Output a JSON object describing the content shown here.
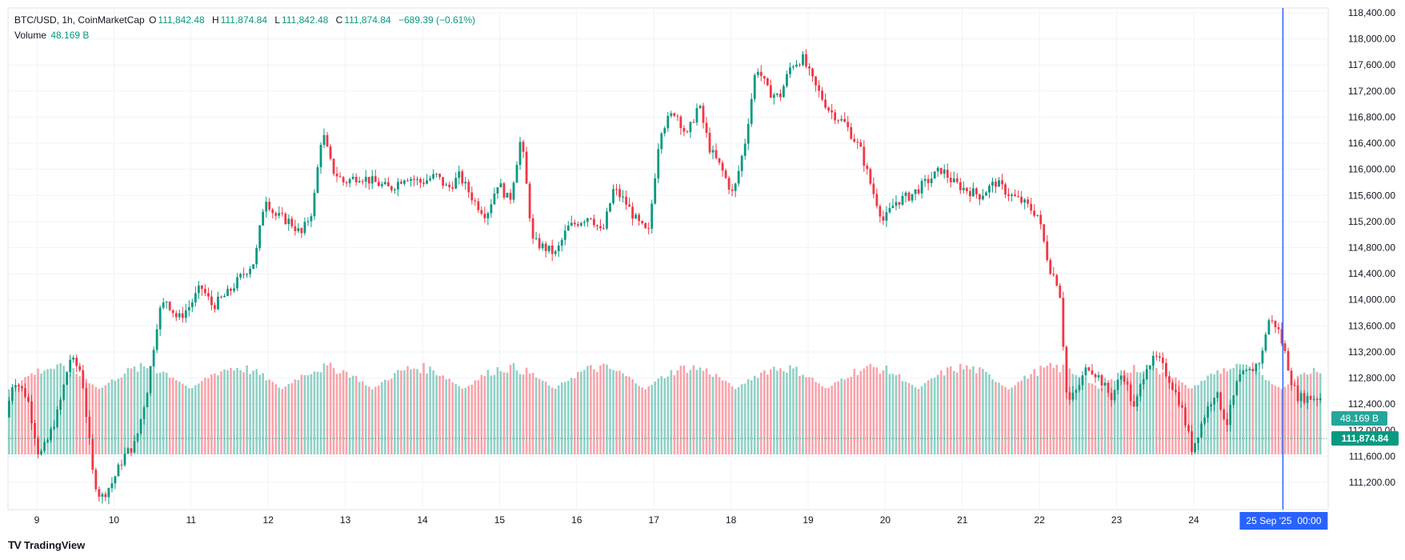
{
  "legend": {
    "symbol": "BTC/USD, 1h, CoinMarketCap",
    "open_label": "O",
    "open": "111,842.48",
    "high_label": "H",
    "high": "111,874.84",
    "low_label": "L",
    "low": "111,842.48",
    "close_label": "C",
    "close": "111,874.84",
    "change": "−689.39 (−0.61%)",
    "volume_label": "Volume",
    "volume": "48.169 B"
  },
  "brand": {
    "name": "TradingView",
    "logo": "TV"
  },
  "chart_data": {
    "type": "candlestick",
    "title": "BTC/USD, 1h, CoinMarketCap",
    "ylim": [
      110800,
      118600
    ],
    "y_ticks": [
      111200,
      111600,
      112000,
      112400,
      112800,
      113200,
      113600,
      114000,
      114400,
      114800,
      115200,
      115600,
      116000,
      116400,
      116800,
      117200,
      117600,
      118000,
      118400
    ],
    "y_tick_labels": [
      "111,200.00",
      "111,600.00",
      "112,000.00",
      "112,400.00",
      "112,800.00",
      "113,200.00",
      "113,600.00",
      "114,000.00",
      "114,400.00",
      "114,800.00",
      "115,200.00",
      "115,600.00",
      "116,000.00",
      "116,400.00",
      "116,800.00",
      "117,200.00",
      "117,600.00",
      "118,000.00",
      "118,400.00"
    ],
    "x_labels": [
      "9",
      "10",
      "11",
      "12",
      "13",
      "14",
      "15",
      "16",
      "17",
      "18",
      "19",
      "20",
      "21",
      "22",
      "23",
      "24",
      "25 Sep '25",
      "00:00"
    ],
    "x_label_days": [
      9,
      10,
      11,
      12,
      13,
      14,
      15,
      16,
      17,
      18,
      19,
      20,
      21,
      22,
      23,
      24
    ],
    "last_price_label": "111,874.84",
    "last_price": 111874.84,
    "volume_badge": "48.169 B",
    "crosshair_day": 25.0,
    "start_day": 8.62,
    "candle_hours": 409,
    "keypoints": [
      [
        8.62,
        112200
      ],
      [
        8.72,
        112800
      ],
      [
        8.9,
        112500
      ],
      [
        9.05,
        111600
      ],
      [
        9.15,
        111800
      ],
      [
        9.3,
        112300
      ],
      [
        9.45,
        113100
      ],
      [
        9.6,
        112900
      ],
      [
        9.75,
        111300
      ],
      [
        9.85,
        110950
      ],
      [
        10.0,
        111200
      ],
      [
        10.15,
        111600
      ],
      [
        10.3,
        111800
      ],
      [
        10.45,
        112600
      ],
      [
        10.6,
        113800
      ],
      [
        10.7,
        114000
      ],
      [
        10.85,
        113700
      ],
      [
        11.0,
        113900
      ],
      [
        11.15,
        114200
      ],
      [
        11.3,
        113900
      ],
      [
        11.5,
        114100
      ],
      [
        11.7,
        114400
      ],
      [
        11.85,
        114600
      ],
      [
        11.98,
        115600
      ],
      [
        12.1,
        115300
      ],
      [
        12.3,
        115200
      ],
      [
        12.45,
        115000
      ],
      [
        12.6,
        115400
      ],
      [
        12.72,
        116600
      ],
      [
        12.85,
        116000
      ],
      [
        13.0,
        115800
      ],
      [
        13.2,
        115900
      ],
      [
        13.4,
        115800
      ],
      [
        13.6,
        115700
      ],
      [
        13.8,
        115900
      ],
      [
        14.0,
        115800
      ],
      [
        14.2,
        115900
      ],
      [
        14.35,
        115700
      ],
      [
        14.5,
        115900
      ],
      [
        14.7,
        115500
      ],
      [
        14.85,
        115300
      ],
      [
        15.0,
        115800
      ],
      [
        15.15,
        115500
      ],
      [
        15.3,
        116500
      ],
      [
        15.45,
        114900
      ],
      [
        15.6,
        114800
      ],
      [
        15.75,
        114700
      ],
      [
        15.9,
        115100
      ],
      [
        16.05,
        115200
      ],
      [
        16.2,
        115300
      ],
      [
        16.35,
        115000
      ],
      [
        16.5,
        115700
      ],
      [
        16.65,
        115500
      ],
      [
        16.8,
        115200
      ],
      [
        16.95,
        115000
      ],
      [
        17.1,
        116600
      ],
      [
        17.3,
        116900
      ],
      [
        17.45,
        116500
      ],
      [
        17.6,
        117000
      ],
      [
        17.75,
        116300
      ],
      [
        17.9,
        116000
      ],
      [
        18.05,
        115600
      ],
      [
        18.2,
        116400
      ],
      [
        18.35,
        117600
      ],
      [
        18.5,
        117200
      ],
      [
        18.65,
        117100
      ],
      [
        18.8,
        117600
      ],
      [
        18.95,
        117700
      ],
      [
        19.1,
        117300
      ],
      [
        19.3,
        116900
      ],
      [
        19.5,
        116700
      ],
      [
        19.7,
        116300
      ],
      [
        19.85,
        115700
      ],
      [
        20.0,
        115200
      ],
      [
        20.15,
        115500
      ],
      [
        20.35,
        115600
      ],
      [
        20.55,
        115800
      ],
      [
        20.75,
        116000
      ],
      [
        20.9,
        115800
      ],
      [
        21.05,
        115700
      ],
      [
        21.25,
        115600
      ],
      [
        21.45,
        115800
      ],
      [
        21.65,
        115600
      ],
      [
        21.8,
        115500
      ],
      [
        22.0,
        115300
      ],
      [
        22.15,
        114500
      ],
      [
        22.28,
        114200
      ],
      [
        22.38,
        112400
      ],
      [
        22.5,
        112600
      ],
      [
        22.65,
        113000
      ],
      [
        22.8,
        112800
      ],
      [
        22.95,
        112500
      ],
      [
        23.1,
        112900
      ],
      [
        23.25,
        112300
      ],
      [
        23.4,
        113000
      ],
      [
        23.55,
        113100
      ],
      [
        23.7,
        112800
      ],
      [
        23.85,
        112400
      ],
      [
        24.0,
        111700
      ],
      [
        24.15,
        112200
      ],
      [
        24.3,
        112600
      ],
      [
        24.45,
        112100
      ],
      [
        24.6,
        112800
      ],
      [
        24.75,
        112900
      ],
      [
        24.9,
        113100
      ],
      [
        24.98,
        113700
      ],
      [
        25.1,
        113600
      ],
      [
        25.2,
        113200
      ],
      [
        25.3,
        112700
      ],
      [
        25.38,
        112500
      ]
    ]
  }
}
